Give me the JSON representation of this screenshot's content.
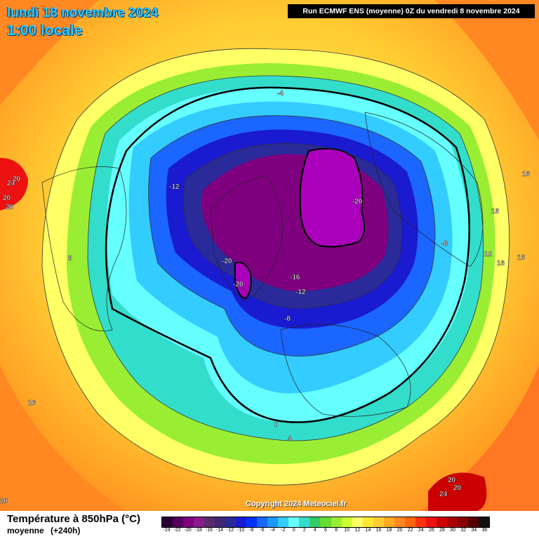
{
  "header": {
    "date": "lundi 18 novembre 2024",
    "time": "1:00 locale",
    "run": "Run ECMWF ENS (moyenne) 0Z du vendredi 8 novembre 2024"
  },
  "copyright": "Copyright 2024 Meteociel.fr",
  "footer": {
    "title": "Température à 850hPa (°C)",
    "subtitle": "moyenne",
    "range": "(+240h)"
  },
  "legend": {
    "labels": [
      "-24",
      "-22",
      "-20",
      "-18",
      "-16",
      "-14",
      "-12",
      "-10",
      "-8",
      "-6",
      "-4",
      "-2",
      "0",
      "2",
      "4",
      "6",
      "8",
      "10",
      "12",
      "14",
      "16",
      "18",
      "20",
      "22",
      "24",
      "26",
      "28",
      "30",
      "32",
      "34",
      "36"
    ],
    "colors": [
      "#2a0033",
      "#55005a",
      "#7f007f",
      "#8a1a8a",
      "#5a2a6a",
      "#3c2870",
      "#2a2a9a",
      "#1a1ad0",
      "#0033ff",
      "#1a66ff",
      "#1a99ff",
      "#33ccff",
      "#66ffff",
      "#33ddcc",
      "#33cc66",
      "#66dd33",
      "#99ee33",
      "#ccff33",
      "#ffff66",
      "#ffe833",
      "#ffcc33",
      "#ffaa22",
      "#ff8822",
      "#ff6611",
      "#ff3311",
      "#ee1111",
      "#cc0000",
      "#aa0000",
      "#880000",
      "#550000",
      "#111111"
    ]
  },
  "isolines": {
    "m4": "-4",
    "m12a": "-12",
    "m20a": "-20",
    "m8a": "-8",
    "m20b": "-20",
    "m16": "-16",
    "m20c": "-20",
    "m12b": "-12",
    "m8b": "-8",
    "p8": "8",
    "p0": "0",
    "p4": "4",
    "p16a": "16",
    "p16b": "16",
    "p16c": "16",
    "p12": "12",
    "p16d": "16",
    "p16e": "16",
    "p24a": "24",
    "p20a": "20",
    "p20b": "20",
    "p20c": "20",
    "p20d": "20",
    "p24b": "24",
    "p20e": "20",
    "p20f": "20"
  }
}
